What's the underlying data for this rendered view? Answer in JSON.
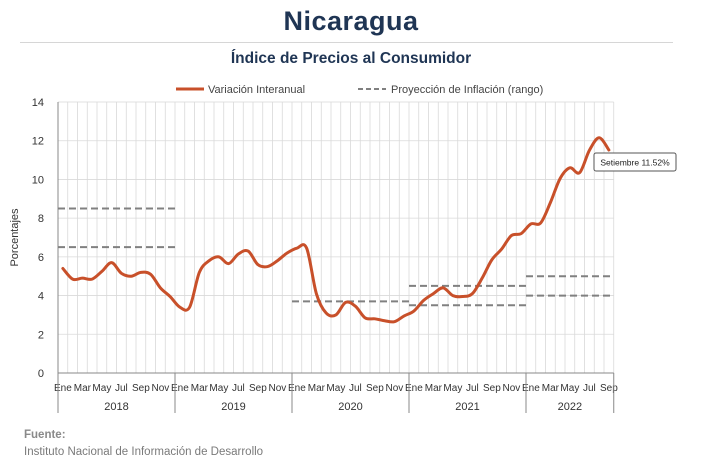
{
  "header": {
    "title": "Nicaragua",
    "subtitle": "Índice de Precios al Consumidor"
  },
  "footer": {
    "source_label": "Fuente:",
    "source_text": "Instituto Nacional de Información de  Desarrollo"
  },
  "colors": {
    "line": "#c8502a",
    "projection": "#808080",
    "grid": "#d9d9d9",
    "title": "#1f3554"
  },
  "chart_data": {
    "type": "line",
    "title": "Índice de Precios al Consumidor",
    "ylabel": "Porcentajes",
    "ylim": [
      0,
      14
    ],
    "yticks": [
      0,
      2,
      4,
      6,
      8,
      10,
      12,
      14
    ],
    "grid": true,
    "legend_position": "top",
    "x_labels": [
      "Ene",
      "Mar",
      "May",
      "Jul",
      "Sep",
      "Nov"
    ],
    "years": [
      "2018",
      "2019",
      "2020",
      "2021",
      "2022"
    ],
    "series": [
      {
        "name": "Variación Interanual",
        "style": "solid",
        "start": "2018-01",
        "values": [
          5.4,
          4.85,
          4.9,
          4.85,
          5.25,
          5.7,
          5.15,
          5.0,
          5.2,
          5.1,
          4.4,
          3.95,
          3.4,
          3.4,
          5.2,
          5.8,
          6.0,
          5.65,
          6.15,
          6.3,
          5.6,
          5.5,
          5.8,
          6.2,
          6.45,
          6.45,
          4.1,
          3.1,
          3.0,
          3.65,
          3.45,
          2.85,
          2.8,
          2.7,
          2.65,
          2.95,
          3.2,
          3.75,
          4.1,
          4.4,
          4.0,
          3.95,
          4.1,
          4.9,
          5.85,
          6.4,
          7.1,
          7.2,
          7.7,
          7.75,
          8.8,
          10.05,
          10.6,
          10.35,
          11.5,
          12.15,
          11.52
        ]
      },
      {
        "name": "Proyección de Inflación (rango)",
        "style": "dashed",
        "ranges": [
          {
            "year": "2018",
            "low": 6.5,
            "high": 8.5
          },
          {
            "year": "2020",
            "low": 3.7,
            "high": 3.7
          },
          {
            "year": "2021",
            "low": 3.5,
            "high": 4.5
          },
          {
            "year": "2022",
            "low": 4.0,
            "high": 5.0
          }
        ]
      }
    ],
    "annotation": {
      "text": "Setiembre 11.52%",
      "month": "2022-09",
      "value": 11.52
    }
  }
}
